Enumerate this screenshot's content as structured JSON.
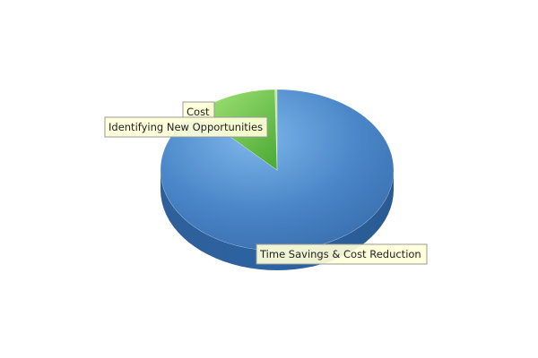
{
  "chart_data": {
    "type": "pie",
    "style": "3d",
    "title": "",
    "slices": [
      {
        "label": "Time Savings & Cost Reduction",
        "value": 88,
        "color": "#4a86c8"
      },
      {
        "label": "Identifying New Opportunities",
        "value": 12,
        "color": "#6cc644"
      },
      {
        "label": "Cost",
        "value": 0.3,
        "color": "#b8e08c"
      }
    ]
  }
}
